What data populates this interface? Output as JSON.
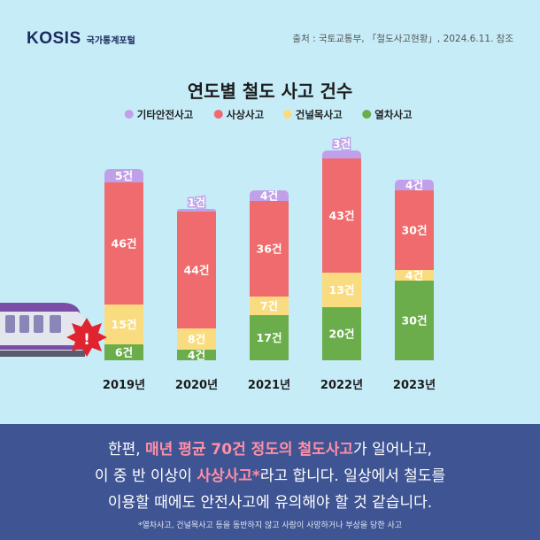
{
  "brand": {
    "logo": "KOSIS",
    "sub": "국가통계포털"
  },
  "source": "출처 : 국토교통부, 「철도사고현황」, 2024.6.11. 참조",
  "chart_data": {
    "type": "bar",
    "stacked": true,
    "title": "연도별 철도 사고 건수",
    "categories": [
      "2019년",
      "2020년",
      "2021년",
      "2022년",
      "2023년"
    ],
    "series": [
      {
        "name": "열차사고",
        "color": "#6aad4a",
        "values": [
          6,
          4,
          17,
          20,
          30
        ],
        "labels": [
          "6건",
          "4건",
          "17건",
          "20건",
          "30건"
        ]
      },
      {
        "name": "건널목사고",
        "color": "#fadc80",
        "values": [
          15,
          8,
          7,
          13,
          4
        ],
        "labels": [
          "15건",
          "8건",
          "7건",
          "13건",
          "4건"
        ]
      },
      {
        "name": "사상사고",
        "color": "#f06b6d",
        "values": [
          46,
          44,
          36,
          43,
          30
        ],
        "labels": [
          "46건",
          "44건",
          "36건",
          "43건",
          "30건"
        ]
      },
      {
        "name": "기타안전사고",
        "color": "#c1a0ea",
        "values": [
          5,
          1,
          4,
          3,
          4
        ],
        "labels": [
          "5건",
          "1건",
          "4건",
          "3건",
          "4건"
        ]
      }
    ],
    "legend_order": [
      "기타안전사고",
      "사상사고",
      "건널목사고",
      "열차사고"
    ],
    "legend_position": "top",
    "grid": false
  },
  "message": {
    "line1_pre": "한편, ",
    "line1_hl": "매년 평균 70건 정도의 철도사고",
    "line1_post": "가 일어나고,",
    "line2_pre": "이 중 반 이상이 ",
    "line2_hl": "사상사고*",
    "line2_post": "라고 합니다. 일상에서 철도를",
    "line3": "이용할 때에도 안전사고에 유의해야 할 것 같습니다.",
    "footnote": "*열차사고, 건널목사고 등을 동반하지 않고 사람이 사망하거나 부상을 당한 사고"
  },
  "illustration": {
    "alert_mark": "!"
  }
}
